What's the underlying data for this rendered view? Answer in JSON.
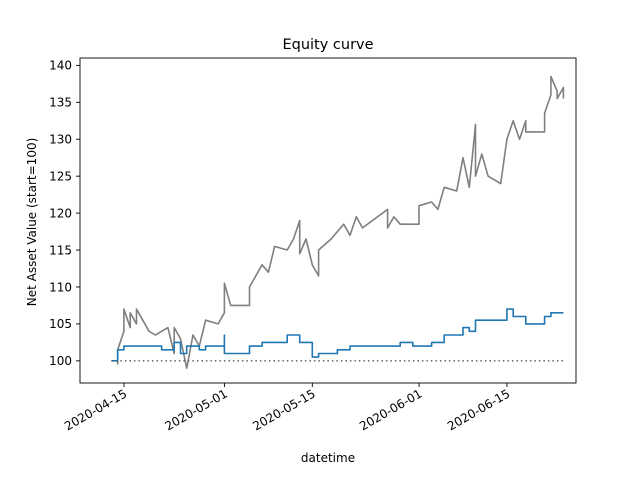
{
  "chart_data": {
    "type": "line",
    "title": "Equity curve",
    "xlabel": "datetime",
    "ylabel": "Net Asset Value (start=100)",
    "xlim": [
      "2020-04-08",
      "2020-06-26"
    ],
    "ylim": [
      97,
      141
    ],
    "x_ticks": [
      "2020-04-15",
      "2020-05-01",
      "2020-05-15",
      "2020-06-01",
      "2020-06-15"
    ],
    "y_ticks": [
      100,
      105,
      110,
      115,
      120,
      125,
      130,
      135,
      140
    ],
    "grid": false,
    "legend": "none",
    "series": [
      {
        "color": "#7f7f7f",
        "style": "solid",
        "points": [
          [
            "2020-04-14",
            99.5
          ],
          [
            "2020-04-14",
            101.5
          ],
          [
            "2020-04-15",
            104.0
          ],
          [
            "2020-04-15",
            107.0
          ],
          [
            "2020-04-16",
            104.5
          ],
          [
            "2020-04-16",
            106.5
          ],
          [
            "2020-04-17",
            105.0
          ],
          [
            "2020-04-17",
            107.0
          ],
          [
            "2020-04-18",
            105.5
          ],
          [
            "2020-04-19",
            104.0
          ],
          [
            "2020-04-20",
            103.5
          ],
          [
            "2020-04-21",
            104.0
          ],
          [
            "2020-04-22",
            104.5
          ],
          [
            "2020-04-23",
            101.0
          ],
          [
            "2020-04-23",
            104.5
          ],
          [
            "2020-04-24",
            103.0
          ],
          [
            "2020-04-25",
            99.0
          ],
          [
            "2020-04-26",
            103.5
          ],
          [
            "2020-04-27",
            102.0
          ],
          [
            "2020-04-28",
            105.5
          ],
          [
            "2020-04-30",
            105.0
          ],
          [
            "2020-05-01",
            106.5
          ],
          [
            "2020-05-01",
            110.5
          ],
          [
            "2020-05-02",
            107.5
          ],
          [
            "2020-05-05",
            107.5
          ],
          [
            "2020-05-05",
            110.0
          ],
          [
            "2020-05-06",
            111.5
          ],
          [
            "2020-05-07",
            113.0
          ],
          [
            "2020-05-08",
            112.0
          ],
          [
            "2020-05-09",
            115.5
          ],
          [
            "2020-05-11",
            115.0
          ],
          [
            "2020-05-12",
            116.5
          ],
          [
            "2020-05-13",
            119.0
          ],
          [
            "2020-05-13",
            114.5
          ],
          [
            "2020-05-14",
            116.5
          ],
          [
            "2020-05-15",
            113.0
          ],
          [
            "2020-05-16",
            111.5
          ],
          [
            "2020-05-16",
            115.0
          ],
          [
            "2020-05-18",
            116.5
          ],
          [
            "2020-05-20",
            118.5
          ],
          [
            "2020-05-21",
            117.0
          ],
          [
            "2020-05-22",
            119.5
          ],
          [
            "2020-05-23",
            118.0
          ],
          [
            "2020-05-27",
            120.5
          ],
          [
            "2020-05-27",
            118.0
          ],
          [
            "2020-05-28",
            119.5
          ],
          [
            "2020-05-29",
            118.5
          ],
          [
            "2020-06-01",
            118.5
          ],
          [
            "2020-06-01",
            121.0
          ],
          [
            "2020-06-03",
            121.5
          ],
          [
            "2020-06-04",
            120.5
          ],
          [
            "2020-06-05",
            123.5
          ],
          [
            "2020-06-07",
            123.0
          ],
          [
            "2020-06-08",
            127.5
          ],
          [
            "2020-06-09",
            123.5
          ],
          [
            "2020-06-10",
            132.0
          ],
          [
            "2020-06-10",
            125.0
          ],
          [
            "2020-06-11",
            128.0
          ],
          [
            "2020-06-12",
            125.0
          ],
          [
            "2020-06-14",
            124.0
          ],
          [
            "2020-06-15",
            130.0
          ],
          [
            "2020-06-16",
            132.5
          ],
          [
            "2020-06-17",
            130.0
          ],
          [
            "2020-06-18",
            132.5
          ],
          [
            "2020-06-18",
            131.0
          ],
          [
            "2020-06-21",
            131.0
          ],
          [
            "2020-06-21",
            133.5
          ],
          [
            "2020-06-22",
            136.0
          ],
          [
            "2020-06-22",
            138.5
          ],
          [
            "2020-06-23",
            136.5
          ],
          [
            "2020-06-23",
            135.5
          ],
          [
            "2020-06-24",
            137.0
          ],
          [
            "2020-06-24",
            135.5
          ]
        ]
      },
      {
        "color": "#1f77b4",
        "style": "solid",
        "points": [
          [
            "2020-04-13",
            100.0
          ],
          [
            "2020-04-14",
            100.0
          ],
          [
            "2020-04-14",
            101.5
          ],
          [
            "2020-04-15",
            101.5
          ],
          [
            "2020-04-15",
            102.0
          ],
          [
            "2020-04-21",
            102.0
          ],
          [
            "2020-04-21",
            101.5
          ],
          [
            "2020-04-23",
            101.5
          ],
          [
            "2020-04-23",
            102.5
          ],
          [
            "2020-04-24",
            102.5
          ],
          [
            "2020-04-24",
            101.0
          ],
          [
            "2020-04-25",
            101.0
          ],
          [
            "2020-04-25",
            102.0
          ],
          [
            "2020-04-27",
            102.0
          ],
          [
            "2020-04-27",
            101.5
          ],
          [
            "2020-04-28",
            101.5
          ],
          [
            "2020-04-28",
            102.0
          ],
          [
            "2020-05-01",
            102.0
          ],
          [
            "2020-05-01",
            103.5
          ],
          [
            "2020-05-01",
            101.0
          ],
          [
            "2020-05-05",
            101.0
          ],
          [
            "2020-05-05",
            102.0
          ],
          [
            "2020-05-07",
            102.0
          ],
          [
            "2020-05-07",
            102.5
          ],
          [
            "2020-05-11",
            102.5
          ],
          [
            "2020-05-11",
            103.5
          ],
          [
            "2020-05-13",
            103.5
          ],
          [
            "2020-05-13",
            102.5
          ],
          [
            "2020-05-15",
            102.5
          ],
          [
            "2020-05-15",
            100.5
          ],
          [
            "2020-05-16",
            100.5
          ],
          [
            "2020-05-16",
            101.0
          ],
          [
            "2020-05-19",
            101.0
          ],
          [
            "2020-05-19",
            101.5
          ],
          [
            "2020-05-21",
            101.5
          ],
          [
            "2020-05-21",
            102.0
          ],
          [
            "2020-05-29",
            102.0
          ],
          [
            "2020-05-29",
            102.5
          ],
          [
            "2020-05-31",
            102.5
          ],
          [
            "2020-05-31",
            102.0
          ],
          [
            "2020-06-03",
            102.0
          ],
          [
            "2020-06-03",
            102.5
          ],
          [
            "2020-06-05",
            102.5
          ],
          [
            "2020-06-05",
            103.5
          ],
          [
            "2020-06-08",
            103.5
          ],
          [
            "2020-06-08",
            104.5
          ],
          [
            "2020-06-09",
            104.5
          ],
          [
            "2020-06-09",
            104.0
          ],
          [
            "2020-06-10",
            104.0
          ],
          [
            "2020-06-10",
            105.5
          ],
          [
            "2020-06-15",
            105.5
          ],
          [
            "2020-06-15",
            107.0
          ],
          [
            "2020-06-16",
            107.0
          ],
          [
            "2020-06-16",
            106.0
          ],
          [
            "2020-06-18",
            106.0
          ],
          [
            "2020-06-18",
            105.0
          ],
          [
            "2020-06-21",
            105.0
          ],
          [
            "2020-06-21",
            106.0
          ],
          [
            "2020-06-22",
            106.0
          ],
          [
            "2020-06-22",
            106.5
          ],
          [
            "2020-06-24",
            106.5
          ]
        ]
      },
      {
        "color": "#555555",
        "style": "dotted",
        "points": [
          [
            "2020-04-13",
            100.0
          ],
          [
            "2020-06-24",
            100.0
          ]
        ]
      }
    ]
  }
}
